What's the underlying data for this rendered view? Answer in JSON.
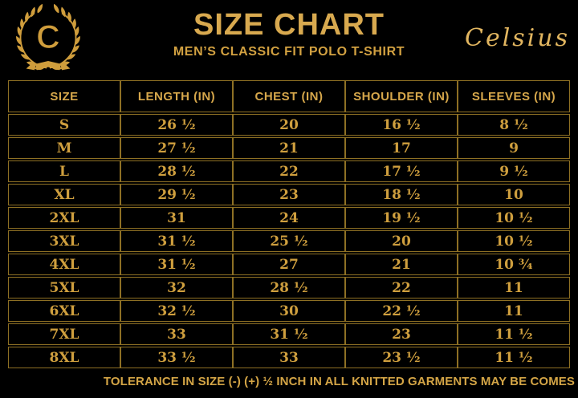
{
  "colors": {
    "background": "#000000",
    "gold_text": "#d2a141",
    "gold_title": "#d8a94f",
    "gold_brand": "#e2b660",
    "border_gold": "#8e7024"
  },
  "header": {
    "logo_letter": "C",
    "title": "SIZE CHART",
    "subtitle": "MEN’S CLASSIC FIT POLO T-SHIRT",
    "brand": "Celsius"
  },
  "chart_data": {
    "type": "table",
    "title": "SIZE CHART",
    "subtitle": "MEN’S CLASSIC FIT POLO T-SHIRT",
    "columns": [
      "SIZE",
      "LENGTH (IN)",
      "CHEST (IN)",
      "SHOULDER (IN)",
      "SLEEVES (IN)"
    ],
    "rows": [
      [
        "S",
        "26 ½",
        "20",
        "16 ½",
        "8 ½"
      ],
      [
        "M",
        "27 ½",
        "21",
        "17",
        "9"
      ],
      [
        "L",
        "28 ½",
        "22",
        "17 ½",
        "9 ½"
      ],
      [
        "XL",
        "29 ½",
        "23",
        "18 ½",
        "10"
      ],
      [
        "2XL",
        "31",
        "24",
        "19 ½",
        "10 ½"
      ],
      [
        "3XL",
        "31 ½",
        "25 ½",
        "20",
        "10 ½"
      ],
      [
        "4XL",
        "31 ½",
        "27",
        "21",
        "10 ¾"
      ],
      [
        "5XL",
        "32",
        "28 ½",
        "22",
        "11"
      ],
      [
        "6XL",
        "32 ½",
        "30",
        "22 ½",
        "11"
      ],
      [
        "7XL",
        "33",
        "31 ½",
        "23",
        "11 ½"
      ],
      [
        "8XL",
        "33 ½",
        "33",
        "23 ½",
        "11 ½"
      ]
    ]
  },
  "footer": {
    "note": "TOLERANCE IN SIZE (-) (+) ½ INCH IN ALL KNITTED GARMENTS MAY BE COMES"
  }
}
